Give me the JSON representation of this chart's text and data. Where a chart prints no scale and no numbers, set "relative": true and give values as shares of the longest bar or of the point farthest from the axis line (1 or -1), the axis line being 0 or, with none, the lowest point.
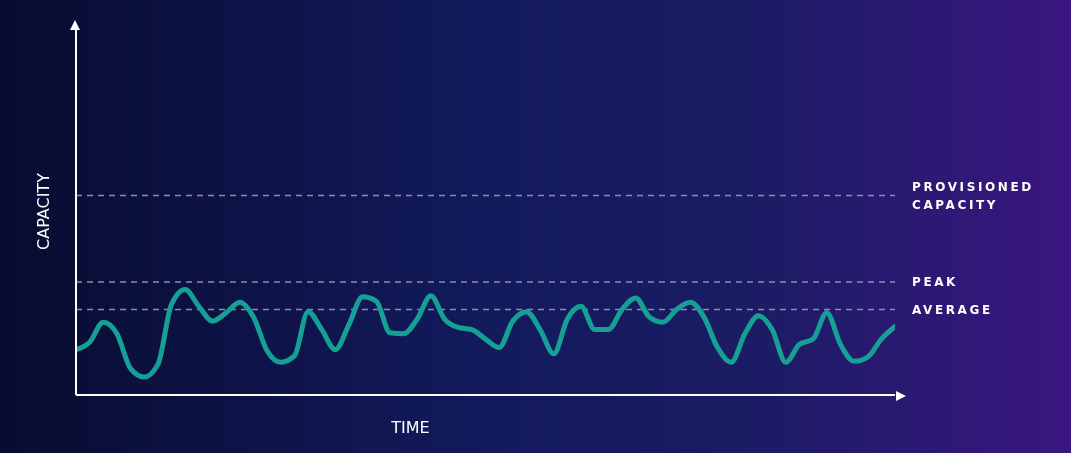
{
  "chart_data": {
    "type": "line",
    "relative": true,
    "xlabel": "TIME",
    "ylabel": "CAPACITY",
    "grid": false,
    "legend": false,
    "marker": "none",
    "line_style": "solid",
    "categories": [
      null,
      null,
      null,
      null,
      null,
      null,
      null,
      null,
      null,
      null,
      null,
      null,
      null,
      null,
      null,
      null,
      null,
      null,
      null,
      null,
      null,
      null,
      null,
      null,
      null,
      null,
      null,
      null,
      null,
      null,
      null,
      null,
      null,
      null,
      null,
      null,
      null,
      null,
      null,
      null,
      null,
      null,
      null,
      null,
      null,
      null,
      null,
      null,
      null,
      null,
      null,
      null,
      null,
      null,
      null,
      null,
      null,
      null,
      null,
      null,
      null
    ],
    "series": [
      {
        "color": "#16a095",
        "values": [
          0.43,
          0.5,
          0.69,
          0.58,
          0.25,
          0.17,
          0.29,
          0.86,
          1,
          0.84,
          0.7,
          0.78,
          0.88,
          0.74,
          0.42,
          0.31,
          0.37,
          0.79,
          0.62,
          0.43,
          0.67,
          0.93,
          0.89,
          0.59,
          0.58,
          0.72,
          0.94,
          0.72,
          0.64,
          0.62,
          0.53,
          0.45,
          0.7,
          0.79,
          0.62,
          0.39,
          0.72,
          0.84,
          0.62,
          0.62,
          0.81,
          0.92,
          0.74,
          0.69,
          0.81,
          0.88,
          0.74,
          0.45,
          0.31,
          0.58,
          0.75,
          0.62,
          0.31,
          0.48,
          0.53,
          0.78,
          0.48,
          0.32,
          0.36,
          0.53,
          0.65
        ]
      }
    ],
    "ref_lines": [
      {
        "axis": "y",
        "value": 1.89,
        "label": "PROVISIONED CAPACITY",
        "color": "#8a8fa8",
        "line_style": "dashed"
      },
      {
        "axis": "y",
        "value": 1.07,
        "label": "PEAK",
        "color": "#8a8fa8",
        "line_style": "dashed"
      },
      {
        "axis": "y",
        "value": 0.81,
        "label": "AVERAGE",
        "color": "#8a8fa8",
        "line_style": "dashed"
      }
    ]
  }
}
